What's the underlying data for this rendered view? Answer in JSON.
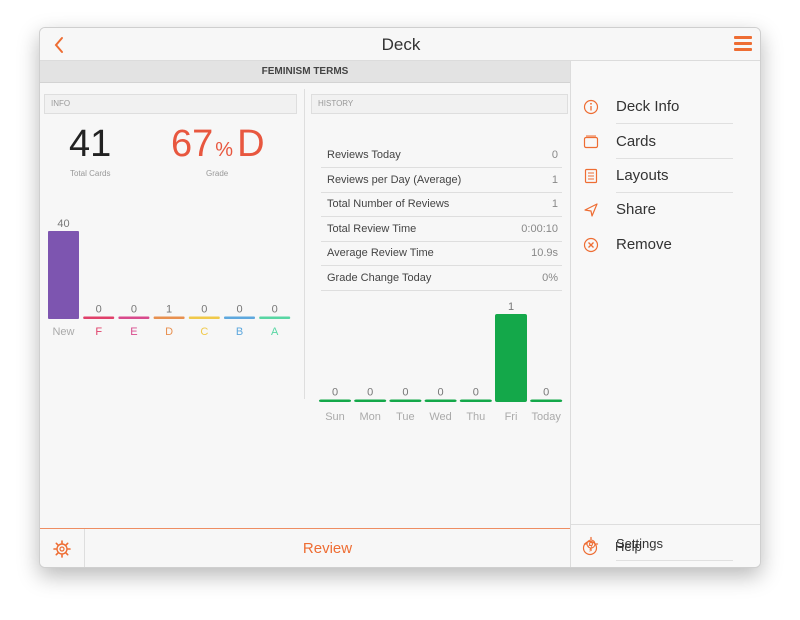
{
  "navbar": {
    "title": "Deck",
    "back_icon": "chevron-left-icon",
    "menu_icon": "hamburger-menu-icon"
  },
  "deck": {
    "name": "FEMINISM TERMS"
  },
  "info": {
    "label": "INFO",
    "total_cards": "41",
    "total_cards_label": "Total Cards",
    "grade_percent": "67",
    "grade_percent_sign": "%",
    "grade_letter": "D",
    "grade_label": "Grade",
    "grade_color": "#e8573f"
  },
  "grade_chart": {
    "type": "bar",
    "categories": [
      "New",
      "F",
      "E",
      "D",
      "C",
      "B",
      "A"
    ],
    "values": [
      40,
      0,
      0,
      1,
      0,
      0,
      0
    ],
    "colors": [
      "#7d55b0",
      "#e0406a",
      "#d84a8c",
      "#e8904f",
      "#f0c94a",
      "#5ea8de",
      "#58d6a3"
    ]
  },
  "history": {
    "label": "HISTORY",
    "rows": [
      {
        "key": "Reviews Today",
        "value": "0"
      },
      {
        "key": "Reviews per Day (Average)",
        "value": "1"
      },
      {
        "key": "Total Number of Reviews",
        "value": "1"
      },
      {
        "key": "Total Review Time",
        "value": "0:00:10"
      },
      {
        "key": "Average Review Time",
        "value": "10.9s"
      },
      {
        "key": "Grade Change Today",
        "value": "0%"
      }
    ]
  },
  "week_chart": {
    "type": "bar",
    "categories": [
      "Sun",
      "Mon",
      "Tue",
      "Wed",
      "Thu",
      "Fri",
      "Today"
    ],
    "values": [
      0,
      0,
      0,
      0,
      0,
      1,
      0
    ],
    "color": "#14a84a"
  },
  "bottom": {
    "review_label": "Review",
    "gear_icon": "gear-icon"
  },
  "sidebar": {
    "items": [
      {
        "label": "Deck Info",
        "icon": "info-icon"
      },
      {
        "label": "Cards",
        "icon": "cards-icon"
      },
      {
        "label": "Layouts",
        "icon": "layouts-icon"
      },
      {
        "label": "Share",
        "icon": "share-icon"
      },
      {
        "label": "Remove",
        "icon": "remove-icon"
      }
    ],
    "footer": [
      {
        "label": "Settings",
        "icon": "gear-icon"
      },
      {
        "label": "Help",
        "icon": "help-icon"
      }
    ]
  },
  "accent": "#ee6d33"
}
